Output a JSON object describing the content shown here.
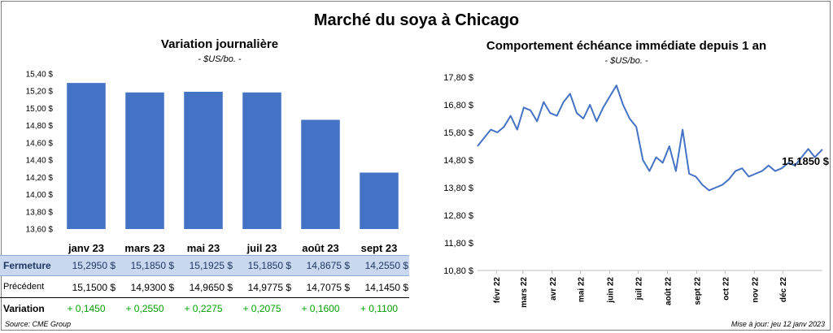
{
  "title": "Marché du soya à Chicago",
  "left_panel": {
    "title": "Variation  journalière",
    "unit": "- $US/bo. -"
  },
  "right_panel": {
    "title": "Comportement  échéance immédiate depuis 1 an",
    "unit": "- $US/bo. -",
    "last_value_label": "15,1850 $"
  },
  "table": {
    "rows": [
      {
        "label": "Fermeture",
        "values": [
          "15,2950  $",
          "15,1850  $",
          "15,1925  $",
          "15,1850  $",
          "14,8675  $",
          "14,2550  $"
        ]
      },
      {
        "label": "Précédent",
        "values": [
          "15,1500  $",
          "14,9300  $",
          "14,9650  $",
          "14,9775  $",
          "14,7075  $",
          "14,1450  $"
        ]
      },
      {
        "label": "Variation",
        "values": [
          "+ 0,1450",
          "+ 0,2550",
          "+ 0,2275",
          "+ 0,2075",
          "+ 0,1600",
          "+ 0,1100"
        ]
      }
    ]
  },
  "footer": {
    "source": "Source: CME Group",
    "updated": "Mise à jour: jeu 12 janv 2023"
  },
  "colors": {
    "bar": "#4472c4",
    "line": "#4472c4",
    "fermeture_row": "#c9d7ef",
    "positive": "#00a000"
  },
  "chart_data": [
    {
      "type": "bar",
      "categories": [
        "janv 23",
        "mars 23",
        "mai 23",
        "juil 23",
        "août 23",
        "sept 23"
      ],
      "values": [
        15.295,
        15.185,
        15.1925,
        15.185,
        14.8675,
        14.255
      ],
      "ylim": [
        13.6,
        15.4
      ],
      "yticks": [
        13.6,
        13.8,
        14.0,
        14.2,
        14.4,
        14.6,
        14.8,
        15.0,
        15.2,
        15.4
      ],
      "ytick_labels": [
        "13,60 $",
        "13,80 $",
        "14,00 $",
        "14,20 $",
        "14,40 $",
        "14,60 $",
        "14,80 $",
        "15,00 $",
        "15,20 $",
        "15,40 $"
      ],
      "grid": false
    },
    {
      "type": "line",
      "ylim": [
        10.8,
        17.8
      ],
      "yticks": [
        10.8,
        11.8,
        12.8,
        13.8,
        14.8,
        15.8,
        16.8,
        17.8
      ],
      "ytick_labels": [
        "10,80 $",
        "11,80 $",
        "12,80 $",
        "13,80 $",
        "14,80 $",
        "15,80 $",
        "16,80 $",
        "17,80 $"
      ],
      "xlim": [
        "2022-01-12",
        "2023-01-12"
      ],
      "xtick_dates": [
        "2022-02-01",
        "2022-03-01",
        "2022-04-01",
        "2022-05-01",
        "2022-06-01",
        "2022-07-01",
        "2022-08-01",
        "2022-09-01",
        "2022-10-01",
        "2022-11-01",
        "2022-12-01"
      ],
      "xtick_labels": [
        "févr 22",
        "mars 22",
        "avr 22",
        "mai 22",
        "juin 22",
        "juil 22",
        "août 22",
        "sept 22",
        "oct 22",
        "nov 22",
        "déc 22"
      ],
      "x": [
        "2022-01-12",
        "2022-01-19",
        "2022-01-26",
        "2022-02-02",
        "2022-02-09",
        "2022-02-16",
        "2022-02-23",
        "2022-03-02",
        "2022-03-09",
        "2022-03-16",
        "2022-03-23",
        "2022-03-30",
        "2022-04-06",
        "2022-04-13",
        "2022-04-20",
        "2022-04-27",
        "2022-05-04",
        "2022-05-11",
        "2022-05-18",
        "2022-05-25",
        "2022-06-01",
        "2022-06-08",
        "2022-06-15",
        "2022-06-22",
        "2022-06-29",
        "2022-07-06",
        "2022-07-13",
        "2022-07-20",
        "2022-07-27",
        "2022-08-03",
        "2022-08-10",
        "2022-08-17",
        "2022-08-24",
        "2022-08-31",
        "2022-09-07",
        "2022-09-14",
        "2022-09-21",
        "2022-09-28",
        "2022-10-05",
        "2022-10-12",
        "2022-10-19",
        "2022-10-26",
        "2022-11-02",
        "2022-11-09",
        "2022-11-16",
        "2022-11-23",
        "2022-11-30",
        "2022-12-07",
        "2022-12-14",
        "2022-12-21",
        "2022-12-28",
        "2023-01-04",
        "2023-01-12"
      ],
      "y": [
        15.3,
        15.6,
        15.9,
        15.8,
        16.0,
        16.4,
        15.9,
        16.7,
        16.6,
        16.2,
        16.9,
        16.5,
        16.4,
        16.9,
        17.2,
        16.5,
        16.3,
        16.8,
        16.2,
        16.7,
        17.1,
        17.5,
        16.8,
        16.3,
        16.0,
        14.8,
        14.4,
        14.9,
        14.7,
        15.3,
        14.4,
        15.9,
        14.3,
        14.2,
        13.9,
        13.7,
        13.8,
        13.9,
        14.1,
        14.4,
        14.5,
        14.2,
        14.3,
        14.4,
        14.6,
        14.4,
        14.5,
        14.7,
        14.6,
        14.9,
        15.2,
        14.9,
        15.185
      ]
    }
  ]
}
